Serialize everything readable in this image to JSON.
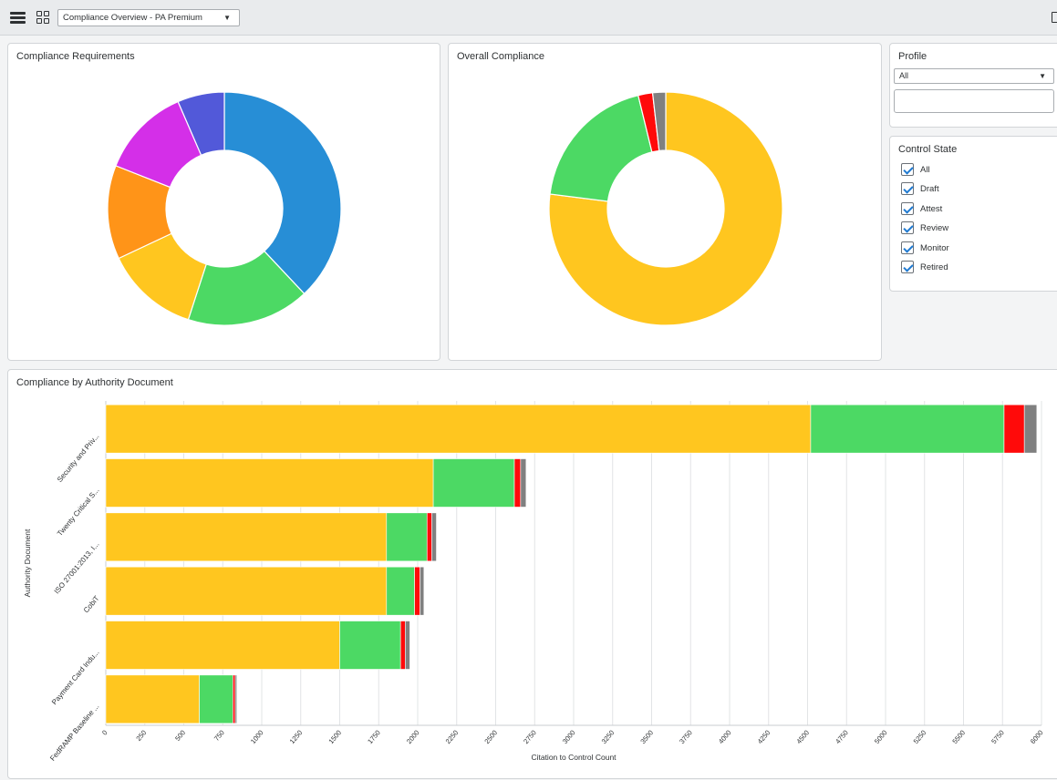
{
  "toolbar": {
    "dashboard_selected": "Compliance Overview - PA Premium",
    "menu_icon": "hamburger-menu-icon",
    "grid_icon": "dashboard-grid-icon"
  },
  "panels": {
    "requirements_title": "Compliance Requirements",
    "overall_title": "Overall Compliance",
    "authority_title": "Compliance by Authority Document",
    "profile_title": "Profile",
    "control_state_title": "Control State"
  },
  "profile": {
    "selected": "All",
    "input_value": ""
  },
  "control_state": {
    "options": [
      {
        "label": "All",
        "checked": true
      },
      {
        "label": "Draft",
        "checked": true
      },
      {
        "label": "Attest",
        "checked": true
      },
      {
        "label": "Review",
        "checked": true
      },
      {
        "label": "Monitor",
        "checked": true
      },
      {
        "label": "Retired",
        "checked": true
      }
    ]
  },
  "chart_data": [
    {
      "type": "pie",
      "variant": "donut",
      "title": "Compliance Requirements",
      "slices": [
        {
          "value": 38,
          "color": "#278ed6"
        },
        {
          "value": 17,
          "color": "#4cd964"
        },
        {
          "value": 13,
          "color": "#ffc61f"
        },
        {
          "value": 13,
          "color": "#ff9418"
        },
        {
          "value": 12.5,
          "color": "#d42fe8"
        },
        {
          "value": 6.5,
          "color": "#5259d9"
        }
      ]
    },
    {
      "type": "pie",
      "variant": "donut",
      "title": "Overall Compliance",
      "slices": [
        {
          "value": 77,
          "color": "#ffc61f"
        },
        {
          "value": 19.2,
          "color": "#4cd964"
        },
        {
          "value": 2.0,
          "color": "#ff0a0a"
        },
        {
          "value": 1.8,
          "color": "#808080"
        }
      ]
    },
    {
      "type": "bar",
      "orientation": "horizontal",
      "stacked": true,
      "title": "Compliance by Authority Document",
      "xlabel": "Citation to Control Count",
      "ylabel": "Authority Document",
      "xlim": [
        0,
        6000
      ],
      "xticks": [
        0,
        250,
        500,
        750,
        1000,
        1250,
        1500,
        1750,
        2000,
        2250,
        2500,
        2750,
        3000,
        3250,
        3500,
        3750,
        4000,
        4250,
        4500,
        4750,
        5000,
        5250,
        5500,
        5750,
        6000
      ],
      "grid": true,
      "categories": [
        "Security and Priv...",
        "Twenty Critical S...",
        "ISO 27001:2013, I...",
        "CobiT",
        "Payment Card Indu...",
        "FedRAMP Baseline ..."
      ],
      "series": [
        {
          "color": "#ffc61f",
          "values": [
            4520,
            2100,
            1800,
            1800,
            1500,
            600
          ]
        },
        {
          "color": "#4cd964",
          "values": [
            1240,
            520,
            260,
            180,
            390,
            215
          ]
        },
        {
          "color": "#ff0a0a",
          "values": [
            130,
            40,
            30,
            35,
            30,
            15
          ]
        },
        {
          "color": "#808080",
          "values": [
            80,
            35,
            30,
            25,
            30,
            10
          ]
        }
      ]
    }
  ]
}
